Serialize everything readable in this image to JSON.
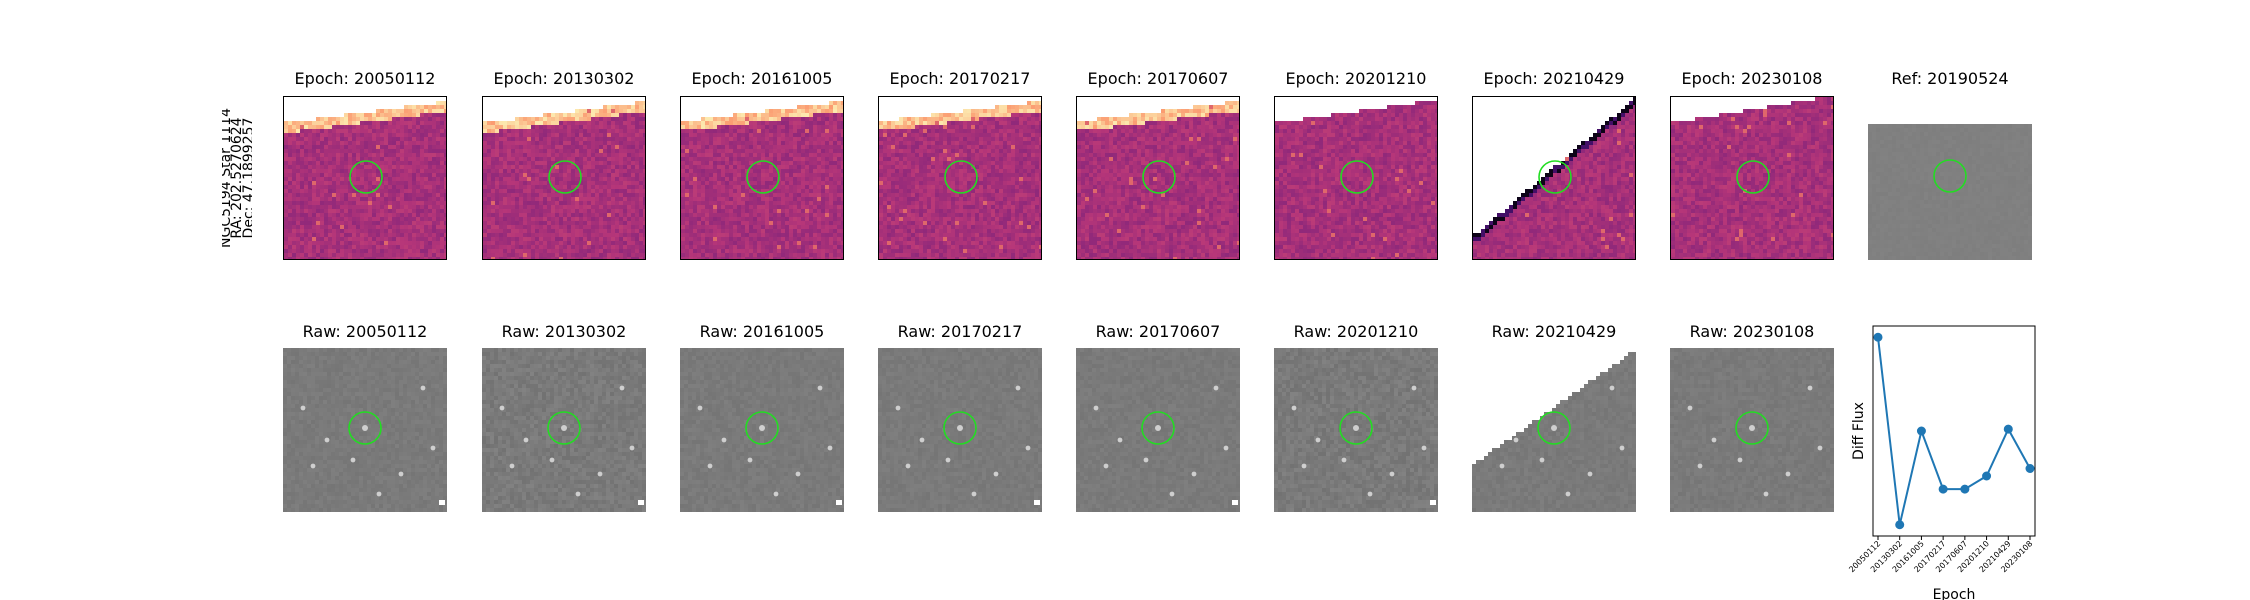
{
  "side_label": {
    "lines": [
      "NGC5194 Star 1114",
      "RA: 202.5270624",
      "Dec: 47.1899257"
    ]
  },
  "top_row": [
    {
      "title": "Epoch: 20050112"
    },
    {
      "title": "Epoch: 20130302"
    },
    {
      "title": "Epoch: 20161005"
    },
    {
      "title": "Epoch: 20170217"
    },
    {
      "title": "Epoch: 20170607"
    },
    {
      "title": "Epoch: 20201210"
    },
    {
      "title": "Epoch: 20210429"
    },
    {
      "title": "Epoch: 20230108"
    },
    {
      "title": "Ref: 20190524"
    }
  ],
  "bottom_row": [
    {
      "title": "Raw: 20050112"
    },
    {
      "title": "Raw: 20130302"
    },
    {
      "title": "Raw: 20161005"
    },
    {
      "title": "Raw: 20170217"
    },
    {
      "title": "Raw: 20170607"
    },
    {
      "title": "Raw: 20201210"
    },
    {
      "title": "Raw: 20210429"
    },
    {
      "title": "Raw: 20230108"
    }
  ],
  "colors": {
    "circle": "#22dd22",
    "line": "#1f77b4",
    "diff_base": "#a24878",
    "raw_base": "#7d7d7d"
  },
  "chart_data": {
    "type": "line",
    "xlabel": "Epoch",
    "ylabel": "Diff Flux",
    "x": [
      "20050112",
      "20130302",
      "20161005",
      "20170217",
      "20170607",
      "20201210",
      "20210429",
      "20230108"
    ],
    "series": [
      {
        "values": [
          1.0,
          0.0,
          0.5,
          0.19,
          0.19,
          0.26,
          0.51,
          0.3
        ]
      }
    ],
    "ylim": [
      -0.06,
      1.06
    ],
    "grid": false
  }
}
